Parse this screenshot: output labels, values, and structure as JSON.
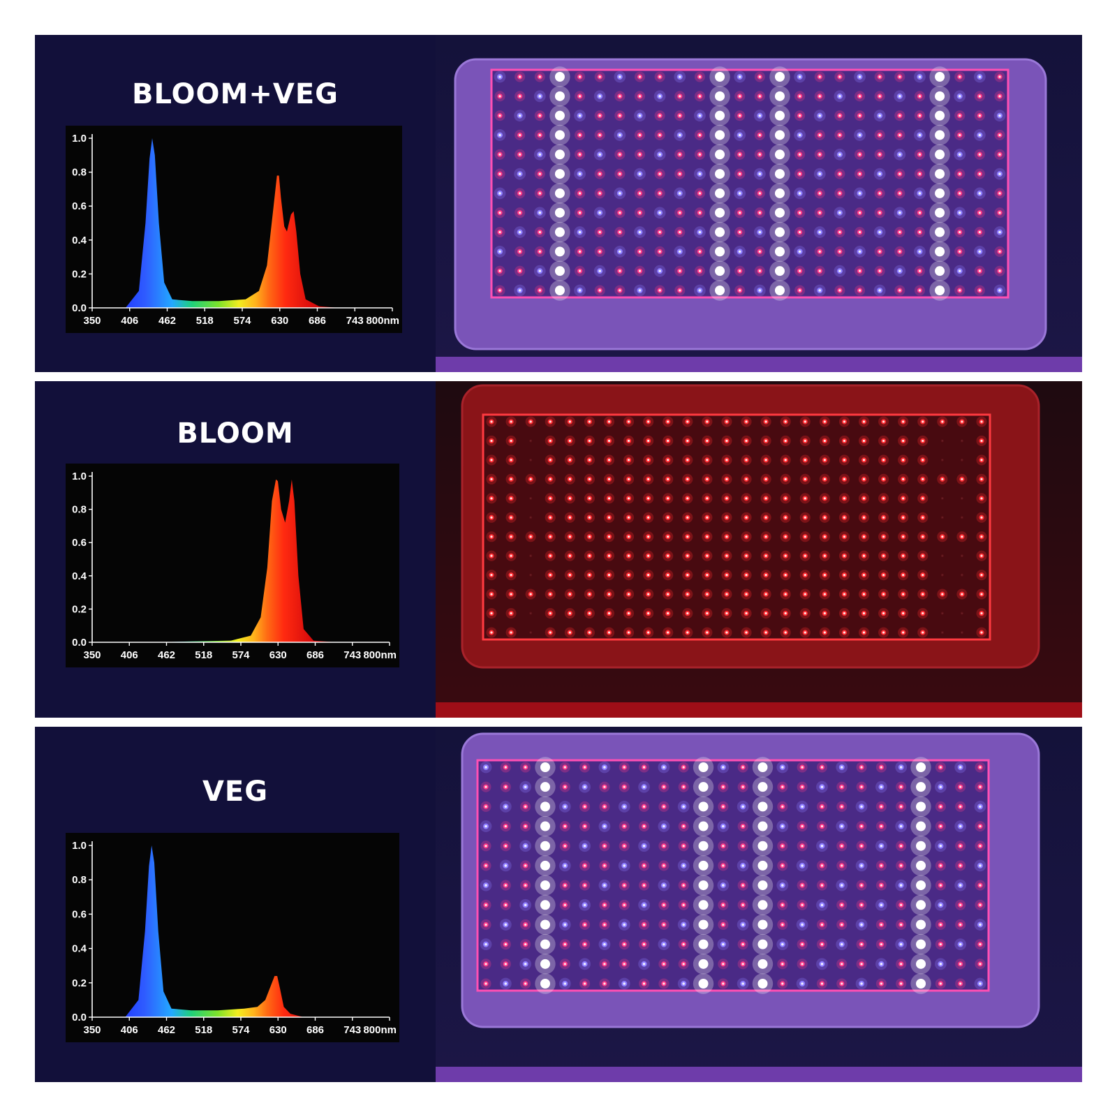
{
  "panels": [
    {
      "title": "BLOOM+VEG",
      "photo": {
        "led_color": "mixed red, blue and white"
      }
    },
    {
      "title": "BLOOM",
      "photo": {
        "led_color": "red"
      }
    },
    {
      "title": "VEG",
      "photo": {
        "led_color": "mixed red, blue and white"
      }
    }
  ],
  "chart_data": [
    {
      "type": "area",
      "title": "",
      "xlabel": "",
      "ylabel": "",
      "xlim": [
        350,
        800
      ],
      "ylim": [
        0,
        1.0
      ],
      "x_ticks": [
        "350",
        "406",
        "462",
        "518",
        "574",
        "630",
        "686",
        "743",
        "800nm"
      ],
      "y_ticks": [
        "1.0",
        "0.8",
        "0.6",
        "0.4",
        "0.2",
        "0.0"
      ],
      "grid": false,
      "series": [
        {
          "x": [
            350,
            400,
            420,
            430,
            436,
            440,
            444,
            450,
            458,
            470,
            500,
            540,
            580,
            600,
            612,
            622,
            627,
            630,
            633,
            638,
            642,
            648,
            652,
            656,
            662,
            670,
            690,
            720,
            760,
            800
          ],
          "y": [
            0.0,
            0.0,
            0.1,
            0.5,
            0.88,
            1.0,
            0.9,
            0.5,
            0.15,
            0.05,
            0.04,
            0.04,
            0.05,
            0.1,
            0.25,
            0.6,
            0.78,
            0.78,
            0.65,
            0.48,
            0.45,
            0.55,
            0.57,
            0.45,
            0.2,
            0.05,
            0.01,
            0.0,
            0.0,
            0.0
          ]
        }
      ]
    },
    {
      "type": "area",
      "title": "",
      "xlabel": "",
      "ylabel": "",
      "xlim": [
        350,
        800
      ],
      "ylim": [
        0,
        1.0
      ],
      "x_ticks": [
        "350",
        "406",
        "462",
        "518",
        "574",
        "630",
        "686",
        "743",
        "800nm"
      ],
      "y_ticks": [
        "1.0",
        "0.8",
        "0.6",
        "0.4",
        "0.2",
        "0.0"
      ],
      "grid": false,
      "series": [
        {
          "x": [
            350,
            450,
            500,
            560,
            590,
            605,
            615,
            622,
            628,
            631,
            636,
            642,
            648,
            652,
            656,
            662,
            670,
            685,
            720,
            800
          ],
          "y": [
            0.0,
            0.0,
            0.005,
            0.01,
            0.04,
            0.15,
            0.45,
            0.85,
            0.98,
            0.97,
            0.8,
            0.72,
            0.85,
            0.98,
            0.85,
            0.4,
            0.08,
            0.01,
            0.0,
            0.0
          ]
        }
      ]
    },
    {
      "type": "area",
      "title": "",
      "xlabel": "",
      "ylabel": "",
      "xlim": [
        350,
        800
      ],
      "ylim": [
        0,
        1.0
      ],
      "x_ticks": [
        "350",
        "406",
        "462",
        "518",
        "574",
        "630",
        "686",
        "743",
        "800nm"
      ],
      "y_ticks": [
        "1.0",
        "0.8",
        "0.6",
        "0.4",
        "0.2",
        "0.0"
      ],
      "grid": false,
      "series": [
        {
          "x": [
            350,
            400,
            420,
            430,
            436,
            440,
            444,
            450,
            458,
            470,
            500,
            540,
            580,
            600,
            612,
            620,
            626,
            630,
            634,
            640,
            650,
            670,
            700,
            800
          ],
          "y": [
            0.0,
            0.0,
            0.1,
            0.5,
            0.88,
            1.0,
            0.9,
            0.5,
            0.15,
            0.05,
            0.04,
            0.04,
            0.05,
            0.06,
            0.1,
            0.18,
            0.24,
            0.24,
            0.17,
            0.06,
            0.02,
            0.0,
            0.0,
            0.0
          ]
        }
      ]
    }
  ]
}
